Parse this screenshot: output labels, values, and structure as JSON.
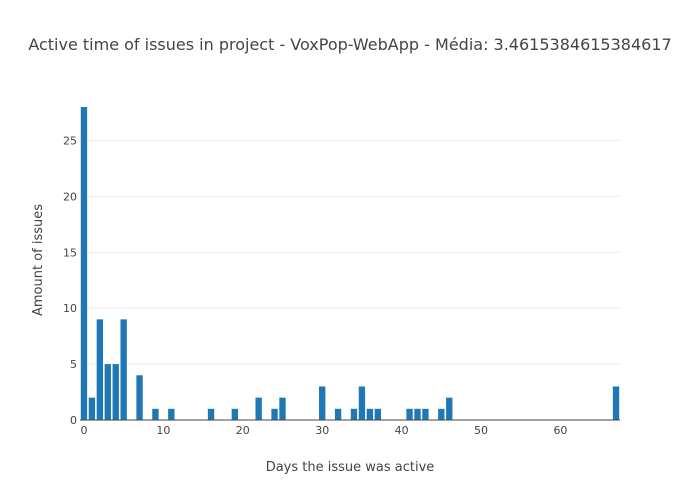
{
  "chart_data": {
    "type": "bar",
    "title": "Active time of issues in project - VoxPop-WebApp - Média: 3.4615384615384617",
    "xlabel": "Days the issue was active",
    "ylabel": "Amount of issues",
    "xlim": [
      -0.5,
      67.5
    ],
    "ylim": [
      0,
      28
    ],
    "x_ticks": [
      0,
      10,
      20,
      30,
      40,
      50,
      60
    ],
    "y_ticks": [
      0,
      5,
      10,
      15,
      20,
      25
    ],
    "grid": true,
    "bar_color": "#1f77b4",
    "x": [
      0,
      1,
      2,
      3,
      4,
      5,
      7,
      9,
      11,
      16,
      19,
      22,
      24,
      25,
      30,
      32,
      34,
      35,
      36,
      37,
      41,
      42,
      43,
      45,
      46,
      67
    ],
    "values": [
      28,
      2,
      9,
      5,
      5,
      9,
      4,
      1,
      1,
      1,
      1,
      2,
      1,
      2,
      3,
      1,
      1,
      3,
      1,
      1,
      1,
      1,
      1,
      1,
      2,
      3
    ]
  }
}
